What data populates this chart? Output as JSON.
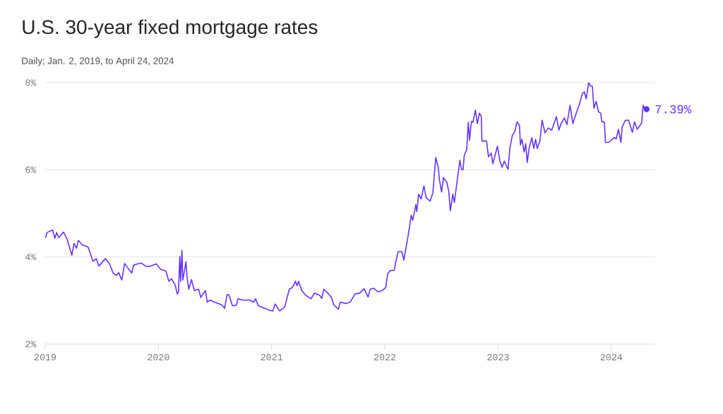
{
  "chart_data": {
    "type": "line",
    "title": "U.S. 30-year fixed mortgage rates",
    "subtitle": "Daily; Jan. 2, 2019, to April 24, 2024",
    "xlim": [
      "2019-01-01",
      "2024-05-22"
    ],
    "xticks": [
      "2019",
      "2020",
      "2021",
      "2022",
      "2023",
      "2024"
    ],
    "ylim": [
      2,
      8
    ],
    "yticks": [
      {
        "value": 2,
        "label": "2%"
      },
      {
        "value": 4,
        "label": "4%"
      },
      {
        "value": 6,
        "label": "6%"
      },
      {
        "value": 8,
        "label": "8%"
      }
    ],
    "grid": "y",
    "series": [
      {
        "color": "#6533ff",
        "marker": "none",
        "line_style": "solid",
        "x": [
          "2019-01-02",
          "2019-01-07",
          "2019-01-25",
          "2019-02-01",
          "2019-02-07",
          "2019-02-14",
          "2019-03-01",
          "2019-03-12",
          "2019-03-28",
          "2019-04-04",
          "2019-04-12",
          "2019-04-18",
          "2019-04-30",
          "2019-05-19",
          "2019-06-04",
          "2019-06-15",
          "2019-06-23",
          "2019-07-14",
          "2019-07-27",
          "2019-08-08",
          "2019-08-19",
          "2019-08-26",
          "2019-09-05",
          "2019-09-14",
          "2019-09-20",
          "2019-10-07",
          "2019-10-13",
          "2019-10-26",
          "2019-11-07",
          "2019-11-22",
          "2019-12-07",
          "2019-12-25",
          "2020-01-09",
          "2020-01-25",
          "2020-02-04",
          "2020-02-12",
          "2020-02-24",
          "2020-03-02",
          "2020-03-06",
          "2020-03-10",
          "2020-03-13",
          "2020-03-17",
          "2020-03-20",
          "2020-03-24",
          "2020-03-30",
          "2020-04-03",
          "2020-04-08",
          "2020-04-17",
          "2020-04-26",
          "2020-05-10",
          "2020-05-17",
          "2020-06-01",
          "2020-06-07",
          "2020-06-16",
          "2020-07-01",
          "2020-07-24",
          "2020-08-02",
          "2020-08-10",
          "2020-08-17",
          "2020-08-27",
          "2020-09-09",
          "2020-09-14",
          "2020-09-30",
          "2020-10-23",
          "2020-11-04",
          "2020-11-10",
          "2020-11-19",
          "2020-12-27",
          "2021-01-05",
          "2021-01-12",
          "2021-01-27",
          "2021-02-12",
          "2021-02-27",
          "2021-03-09",
          "2021-03-19",
          "2021-03-24",
          "2021-03-29",
          "2021-04-08",
          "2021-04-21",
          "2021-05-08",
          "2021-05-19",
          "2021-06-05",
          "2021-06-12",
          "2021-06-18",
          "2021-07-01",
          "2021-07-13",
          "2021-07-20",
          "2021-08-04",
          "2021-08-10",
          "2021-08-31",
          "2021-09-12",
          "2021-09-27",
          "2021-10-12",
          "2021-10-26",
          "2021-11-08",
          "2021-11-15",
          "2021-11-27",
          "2021-12-09",
          "2021-12-24",
          "2022-01-04",
          "2022-01-10",
          "2022-01-19",
          "2022-01-31",
          "2022-02-05",
          "2022-02-13",
          "2022-02-25",
          "2022-03-03",
          "2022-03-12",
          "2022-03-21",
          "2022-03-27",
          "2022-04-01",
          "2022-04-11",
          "2022-04-14",
          "2022-04-20",
          "2022-04-28",
          "2022-05-07",
          "2022-05-14",
          "2022-05-27",
          "2022-06-05",
          "2022-06-14",
          "2022-06-22",
          "2022-06-26",
          "2022-07-03",
          "2022-07-09",
          "2022-07-20",
          "2022-07-26",
          "2022-07-31",
          "2022-08-08",
          "2022-08-13",
          "2022-08-19",
          "2022-08-31",
          "2022-09-05",
          "2022-09-10",
          "2022-09-14",
          "2022-09-22",
          "2022-09-27",
          "2022-10-01",
          "2022-10-07",
          "2022-10-12",
          "2022-10-20",
          "2022-10-26",
          "2022-11-02",
          "2022-11-08",
          "2022-11-10",
          "2022-11-25",
          "2022-12-01",
          "2022-12-10",
          "2022-12-15",
          "2022-12-30",
          "2023-01-07",
          "2023-01-14",
          "2023-01-21",
          "2023-02-02",
          "2023-02-08",
          "2023-02-16",
          "2023-02-24",
          "2023-03-03",
          "2023-03-11",
          "2023-03-14",
          "2023-03-19",
          "2023-03-26",
          "2023-03-31",
          "2023-04-05",
          "2023-04-11",
          "2023-04-20",
          "2023-04-26",
          "2023-05-02",
          "2023-05-07",
          "2023-05-16",
          "2023-05-23",
          "2023-06-01",
          "2023-06-12",
          "2023-06-23",
          "2023-07-08",
          "2023-07-16",
          "2023-07-23",
          "2023-08-03",
          "2023-08-11",
          "2023-08-21",
          "2023-08-30",
          "2023-09-10",
          "2023-09-21",
          "2023-09-29",
          "2023-10-06",
          "2023-10-12",
          "2023-10-20",
          "2023-10-26",
          "2023-11-01",
          "2023-11-06",
          "2023-11-13",
          "2023-11-21",
          "2023-11-28",
          "2023-12-01",
          "2023-12-10",
          "2023-12-13",
          "2023-12-24",
          "2024-01-10",
          "2024-01-17",
          "2024-01-24",
          "2024-02-01",
          "2024-02-05",
          "2024-02-15",
          "2024-02-26",
          "2024-03-09",
          "2024-03-16",
          "2024-03-25",
          "2024-04-02",
          "2024-04-08",
          "2024-04-13",
          "2024-04-18",
          "2024-04-24"
        ],
        "values": [
          4.44,
          4.56,
          4.62,
          4.43,
          4.56,
          4.44,
          4.57,
          4.42,
          4.04,
          4.31,
          4.2,
          4.38,
          4.28,
          4.23,
          3.9,
          3.96,
          3.79,
          3.96,
          3.85,
          3.63,
          3.58,
          3.64,
          3.47,
          3.85,
          3.79,
          3.63,
          3.81,
          3.84,
          3.86,
          3.78,
          3.79,
          3.84,
          3.71,
          3.68,
          3.44,
          3.5,
          3.36,
          3.15,
          3.2,
          4.01,
          3.44,
          4.15,
          3.47,
          3.63,
          3.89,
          3.52,
          3.26,
          3.48,
          3.23,
          3.26,
          3.07,
          3.23,
          2.96,
          3.01,
          2.96,
          2.9,
          2.82,
          3.14,
          3.12,
          2.88,
          2.89,
          3.04,
          3.01,
          3.01,
          2.96,
          3.04,
          2.88,
          2.77,
          2.76,
          2.92,
          2.76,
          2.85,
          3.26,
          3.3,
          3.44,
          3.34,
          3.44,
          3.23,
          3.12,
          3.04,
          3.17,
          3.12,
          3.05,
          3.26,
          3.17,
          3.07,
          2.9,
          2.8,
          2.96,
          2.93,
          2.97,
          3.15,
          3.17,
          3.27,
          3.08,
          3.26,
          3.28,
          3.2,
          3.23,
          3.3,
          3.61,
          3.69,
          3.69,
          3.88,
          4.12,
          4.12,
          3.93,
          4.28,
          4.66,
          4.96,
          4.84,
          5.2,
          5.04,
          5.44,
          5.33,
          5.63,
          5.36,
          5.28,
          5.48,
          6.28,
          6.06,
          5.77,
          5.49,
          5.82,
          5.71,
          5.5,
          5.06,
          5.44,
          5.25,
          5.58,
          6.22,
          6.01,
          6.0,
          6.33,
          6.47,
          7.09,
          6.68,
          7.11,
          7.09,
          7.37,
          7.06,
          7.3,
          7.22,
          6.66,
          6.66,
          6.3,
          6.38,
          6.14,
          6.54,
          6.2,
          6.06,
          6.2,
          6.01,
          6.49,
          6.79,
          6.88,
          7.1,
          7.02,
          6.57,
          6.7,
          6.41,
          6.6,
          6.17,
          6.49,
          6.74,
          6.49,
          6.7,
          6.49,
          6.67,
          7.14,
          6.85,
          6.96,
          6.91,
          7.22,
          6.91,
          7.06,
          7.19,
          7.04,
          7.48,
          7.06,
          7.3,
          7.52,
          7.74,
          7.79,
          7.63,
          8.0,
          7.92,
          7.92,
          7.41,
          7.57,
          7.33,
          7.3,
          7.11,
          7.09,
          6.63,
          6.63,
          6.74,
          6.71,
          6.93,
          6.63,
          6.98,
          7.13,
          7.14,
          6.86,
          7.1,
          6.93,
          7.01,
          7.08,
          7.48,
          7.39,
          7.39
        ]
      },
      {
        "type": "scatter",
        "color": "#6533ff",
        "marker": "circle",
        "x": [
          "2024-04-24"
        ],
        "values": [
          7.39
        ]
      }
    ],
    "annotations": [
      {
        "text": "7.39%",
        "x": "2024-04-24",
        "y": 7.39
      }
    ]
  }
}
